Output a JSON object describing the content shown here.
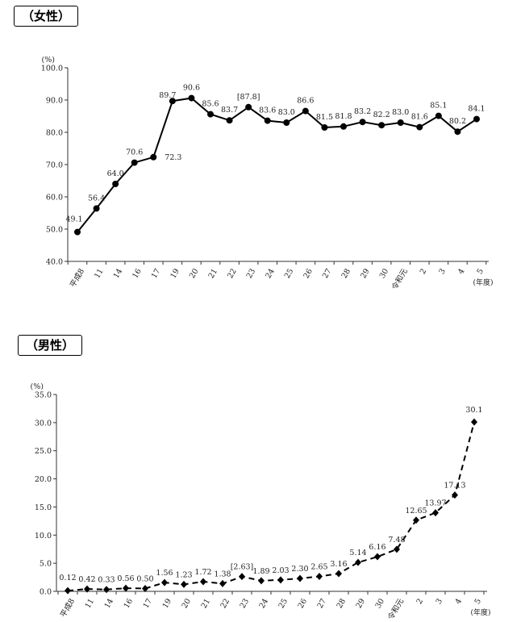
{
  "panels": {
    "female": {
      "title": "（女性）"
    },
    "male": {
      "title": "（男性）"
    }
  },
  "chart_data": [
    {
      "type": "line",
      "title": "（女性）",
      "ylabel": "(%)",
      "xlabel": "(年度)",
      "ylim": [
        40,
        100
      ],
      "yticks": [
        "40.0",
        "50.0",
        "60.0",
        "70.0",
        "80.0",
        "90.0",
        "100.0"
      ],
      "categories": [
        "平成8",
        "11",
        "14",
        "16",
        "17",
        "19",
        "20",
        "21",
        "22",
        "23",
        "24",
        "25",
        "26",
        "27",
        "28",
        "29",
        "30",
        "令和元",
        "2",
        "3",
        "4",
        "5"
      ],
      "series": [
        {
          "values": [
            49.1,
            56.4,
            64.0,
            70.6,
            72.3,
            89.7,
            90.6,
            85.6,
            83.7,
            87.8,
            83.6,
            83.0,
            86.6,
            81.5,
            81.8,
            83.2,
            82.2,
            83.0,
            81.6,
            85.1,
            80.2,
            84.1
          ],
          "labels": [
            "49.1",
            "56.4",
            "64.0",
            "70.6",
            "72.3",
            "89.7",
            "90.6",
            "85.6",
            "83.7",
            "[87.8]",
            "83.6",
            "83.0",
            "86.6",
            "81.5",
            "81.8",
            "83.2",
            "82.2",
            "83.0",
            "81.6",
            "85.1",
            "80.2",
            "84.1"
          ],
          "line_style": "solid",
          "marker": "circle"
        }
      ],
      "grid": false,
      "legend": "none"
    },
    {
      "type": "line",
      "title": "（男性）",
      "ylabel": "(%)",
      "xlabel": "(年度)",
      "ylim": [
        0,
        35
      ],
      "yticks": [
        "0.0",
        "5.0",
        "10.0",
        "15.0",
        "20.0",
        "25.0",
        "30.0",
        "35.0"
      ],
      "categories": [
        "平成8",
        "11",
        "14",
        "16",
        "17",
        "19",
        "20",
        "21",
        "22",
        "23",
        "24",
        "25",
        "26",
        "27",
        "28",
        "29",
        "30",
        "令和元",
        "2",
        "3",
        "4",
        "5"
      ],
      "series": [
        {
          "values": [
            0.12,
            0.42,
            0.33,
            0.56,
            0.5,
            1.56,
            1.23,
            1.72,
            1.38,
            2.63,
            1.89,
            2.03,
            2.3,
            2.65,
            3.16,
            5.14,
            6.16,
            7.48,
            12.65,
            13.97,
            17.13,
            30.1
          ],
          "labels": [
            "0.12",
            "0.42",
            "0.33",
            "0.56",
            "0.50",
            "1.56",
            "1.23",
            "1.72",
            "1.38",
            "[2.63]",
            "1.89",
            "2.03",
            "2.30",
            "2.65",
            "3.16",
            "5.14",
            "6.16",
            "7.48",
            "12.65",
            "13.97",
            "17.13",
            "30.1"
          ],
          "line_style": "dashed",
          "marker": "diamond"
        }
      ],
      "grid": false,
      "legend": "none"
    }
  ]
}
